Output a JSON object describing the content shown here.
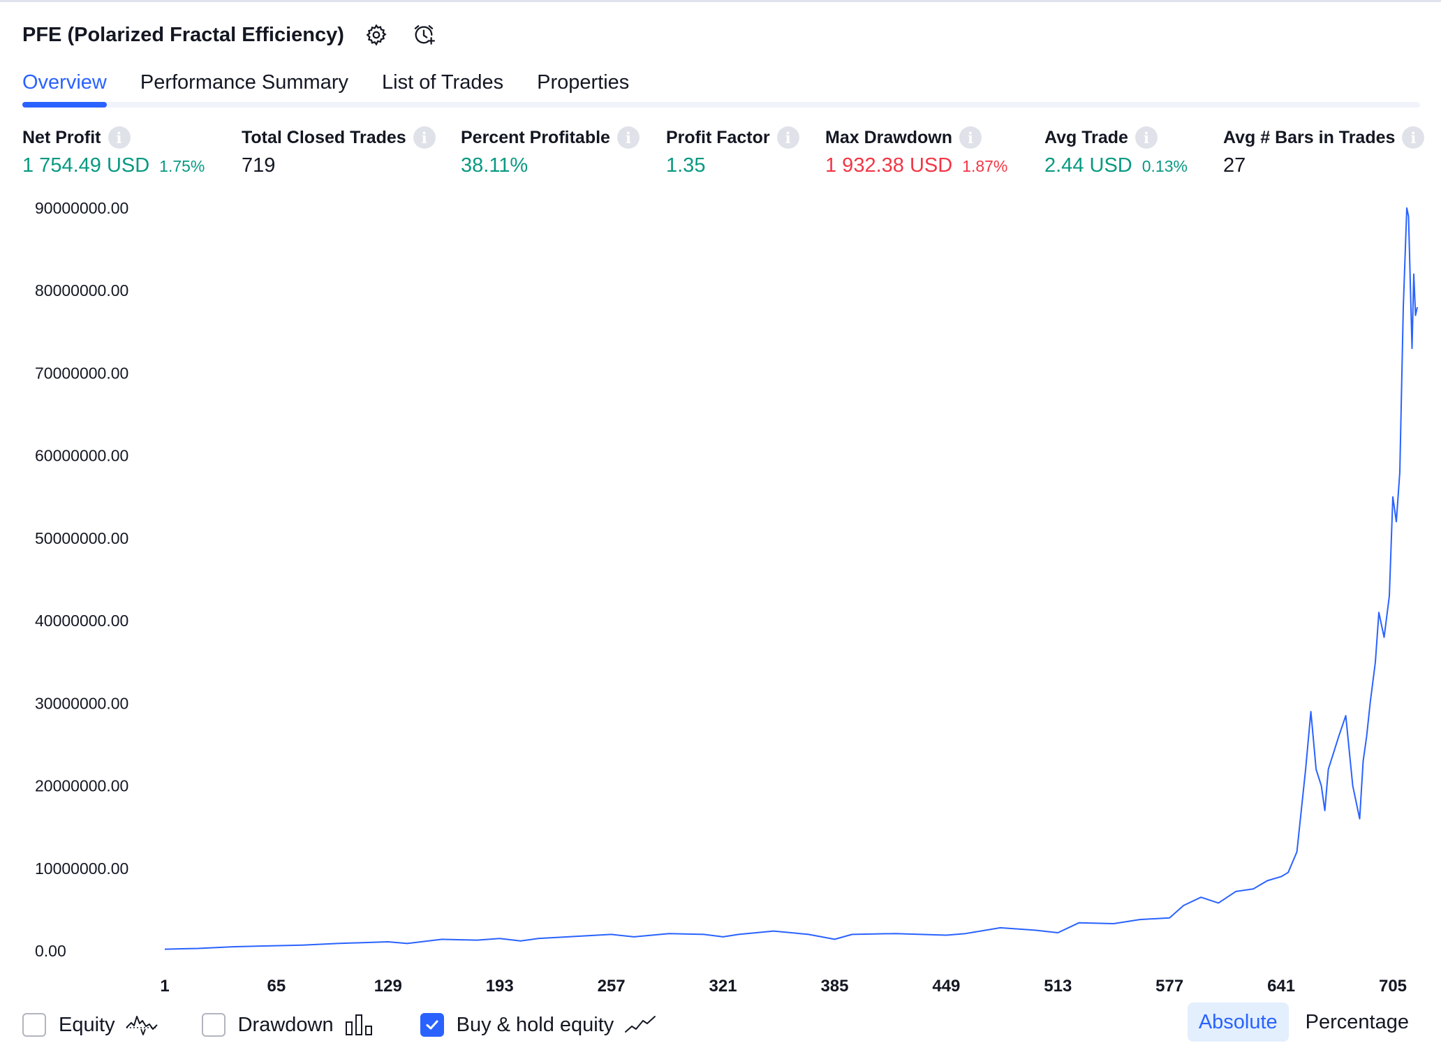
{
  "header": {
    "title": "PFE (Polarized Fractal Efficiency)",
    "settings_icon": "gear-icon",
    "alert_icon": "add-alert-icon"
  },
  "tabs": [
    {
      "label": "Overview",
      "active": true
    },
    {
      "label": "Performance Summary",
      "active": false
    },
    {
      "label": "List of Trades",
      "active": false
    },
    {
      "label": "Properties",
      "active": false
    }
  ],
  "metrics": [
    {
      "label": "Net Profit",
      "value": "1 754.49 USD",
      "pct": "1.75%",
      "tone": "green"
    },
    {
      "label": "Total Closed Trades",
      "value": "719",
      "pct": "",
      "tone": "dark"
    },
    {
      "label": "Percent Profitable",
      "value": "38.11%",
      "pct": "",
      "tone": "green"
    },
    {
      "label": "Profit Factor",
      "value": "1.35",
      "pct": "",
      "tone": "green"
    },
    {
      "label": "Max Drawdown",
      "value": "1 932.38 USD",
      "pct": "1.87%",
      "tone": "red"
    },
    {
      "label": "Avg Trade",
      "value": "2.44 USD",
      "pct": "0.13%",
      "tone": "green"
    },
    {
      "label": "Avg # Bars in Trades",
      "value": "27",
      "pct": "",
      "tone": "dark"
    }
  ],
  "colors": {
    "accent": "#2962ff",
    "positive": "#089981",
    "negative": "#f23645",
    "line": "#2962ff"
  },
  "chart_data": {
    "type": "line",
    "title": "",
    "xlabel": "",
    "ylabel": "",
    "x_ticks": [
      "1",
      "65",
      "129",
      "193",
      "257",
      "321",
      "385",
      "449",
      "513",
      "577",
      "641",
      "705"
    ],
    "y_ticks": [
      "0.00",
      "10000000.00",
      "20000000.00",
      "30000000.00",
      "40000000.00",
      "50000000.00",
      "60000000.00",
      "70000000.00",
      "80000000.00",
      "90000000.00"
    ],
    "xlim": [
      1,
      719
    ],
    "ylim": [
      0,
      90000000
    ],
    "grid": false,
    "series": [
      {
        "name": "Buy & hold equity",
        "x": [
          1,
          20,
          40,
          60,
          80,
          100,
          129,
          140,
          160,
          180,
          193,
          205,
          215,
          240,
          257,
          270,
          290,
          310,
          321,
          330,
          350,
          370,
          385,
          395,
          420,
          449,
          460,
          480,
          500,
          513,
          525,
          545,
          560,
          577,
          585,
          595,
          605,
          615,
          625,
          633,
          641,
          645,
          650,
          655,
          658,
          661,
          664,
          666,
          668,
          671,
          674,
          678,
          682,
          686,
          688,
          690,
          692,
          695,
          697,
          700,
          703,
          705,
          707,
          709,
          711,
          713,
          714,
          716,
          717,
          718,
          719
        ],
        "values": [
          200000,
          300000,
          500000,
          600000,
          700000,
          900000,
          1100000,
          900000,
          1400000,
          1300000,
          1500000,
          1200000,
          1500000,
          1800000,
          2000000,
          1700000,
          2100000,
          2000000,
          1700000,
          2000000,
          2400000,
          2000000,
          1400000,
          2000000,
          2100000,
          1900000,
          2100000,
          2800000,
          2500000,
          2200000,
          3400000,
          3300000,
          3800000,
          4000000,
          5500000,
          6500000,
          5800000,
          7200000,
          7500000,
          8500000,
          9000000,
          9500000,
          12000000,
          22000000,
          29000000,
          22000000,
          20000000,
          17000000,
          22000000,
          24000000,
          26000000,
          28500000,
          20000000,
          16000000,
          23000000,
          26000000,
          30000000,
          35000000,
          41000000,
          38000000,
          43000000,
          55000000,
          52000000,
          58000000,
          78000000,
          90000000,
          89000000,
          73000000,
          82000000,
          77000000,
          78000000
        ]
      }
    ]
  },
  "legend": {
    "equity": {
      "label": "Equity",
      "checked": false,
      "icon": "equity-chart-icon"
    },
    "drawdown": {
      "label": "Drawdown",
      "checked": false,
      "icon": "drawdown-bars-icon"
    },
    "buyhold": {
      "label": "Buy & hold equity",
      "checked": true,
      "icon": "trend-line-icon"
    }
  },
  "scale_toggle": {
    "absolute": "Absolute",
    "percentage": "Percentage",
    "selected": "Absolute"
  }
}
